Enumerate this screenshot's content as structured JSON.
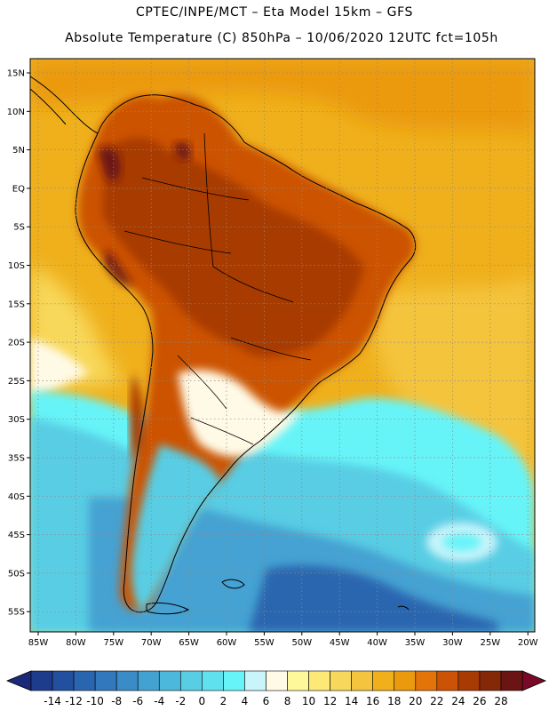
{
  "title_line1": "CPTEC/INPE/MCT –  Eta Model 15km – GFS",
  "title_line2": "Absolute Temperature (C) 850hPa – 10/06/2020 12UTC fct=105h",
  "map": {
    "lat_labels": [
      "15N",
      "10N",
      "5N",
      "EQ",
      "5S",
      "10S",
      "15S",
      "20S",
      "25S",
      "30S",
      "35S",
      "40S",
      "45S",
      "50S",
      "55S"
    ],
    "lon_labels": [
      "85W",
      "80W",
      "75W",
      "70W",
      "65W",
      "60W",
      "55W",
      "50W",
      "45W",
      "40W",
      "35W",
      "30W",
      "25W",
      "20W"
    ],
    "grid": "dotted"
  },
  "colorbar": {
    "labels": [
      "-14",
      "-12",
      "-10",
      "-8",
      "-6",
      "-4",
      "-2",
      "0",
      "2",
      "4",
      "6",
      "8",
      "10",
      "12",
      "14",
      "16",
      "18",
      "20",
      "22",
      "24",
      "26",
      "28"
    ],
    "colors": [
      "#1e3c8c",
      "#23509e",
      "#2a66b0",
      "#3178bc",
      "#3a8cc6",
      "#44a2d2",
      "#4cb8dc",
      "#58cde4",
      "#60e2ee",
      "#66f4f8",
      "#c8f4fa",
      "#fffae6",
      "#fff89a",
      "#fde878",
      "#f8d85a",
      "#f4c43e",
      "#efb01c",
      "#eb9a0e",
      "#e3740a",
      "#cc5306",
      "#a83a04",
      "#852808",
      "#6a1414"
    ],
    "ends": {
      "left": "#1a2a78",
      "right": "#780a28"
    }
  },
  "icons": {
    "map": "south-america-map-icon"
  }
}
